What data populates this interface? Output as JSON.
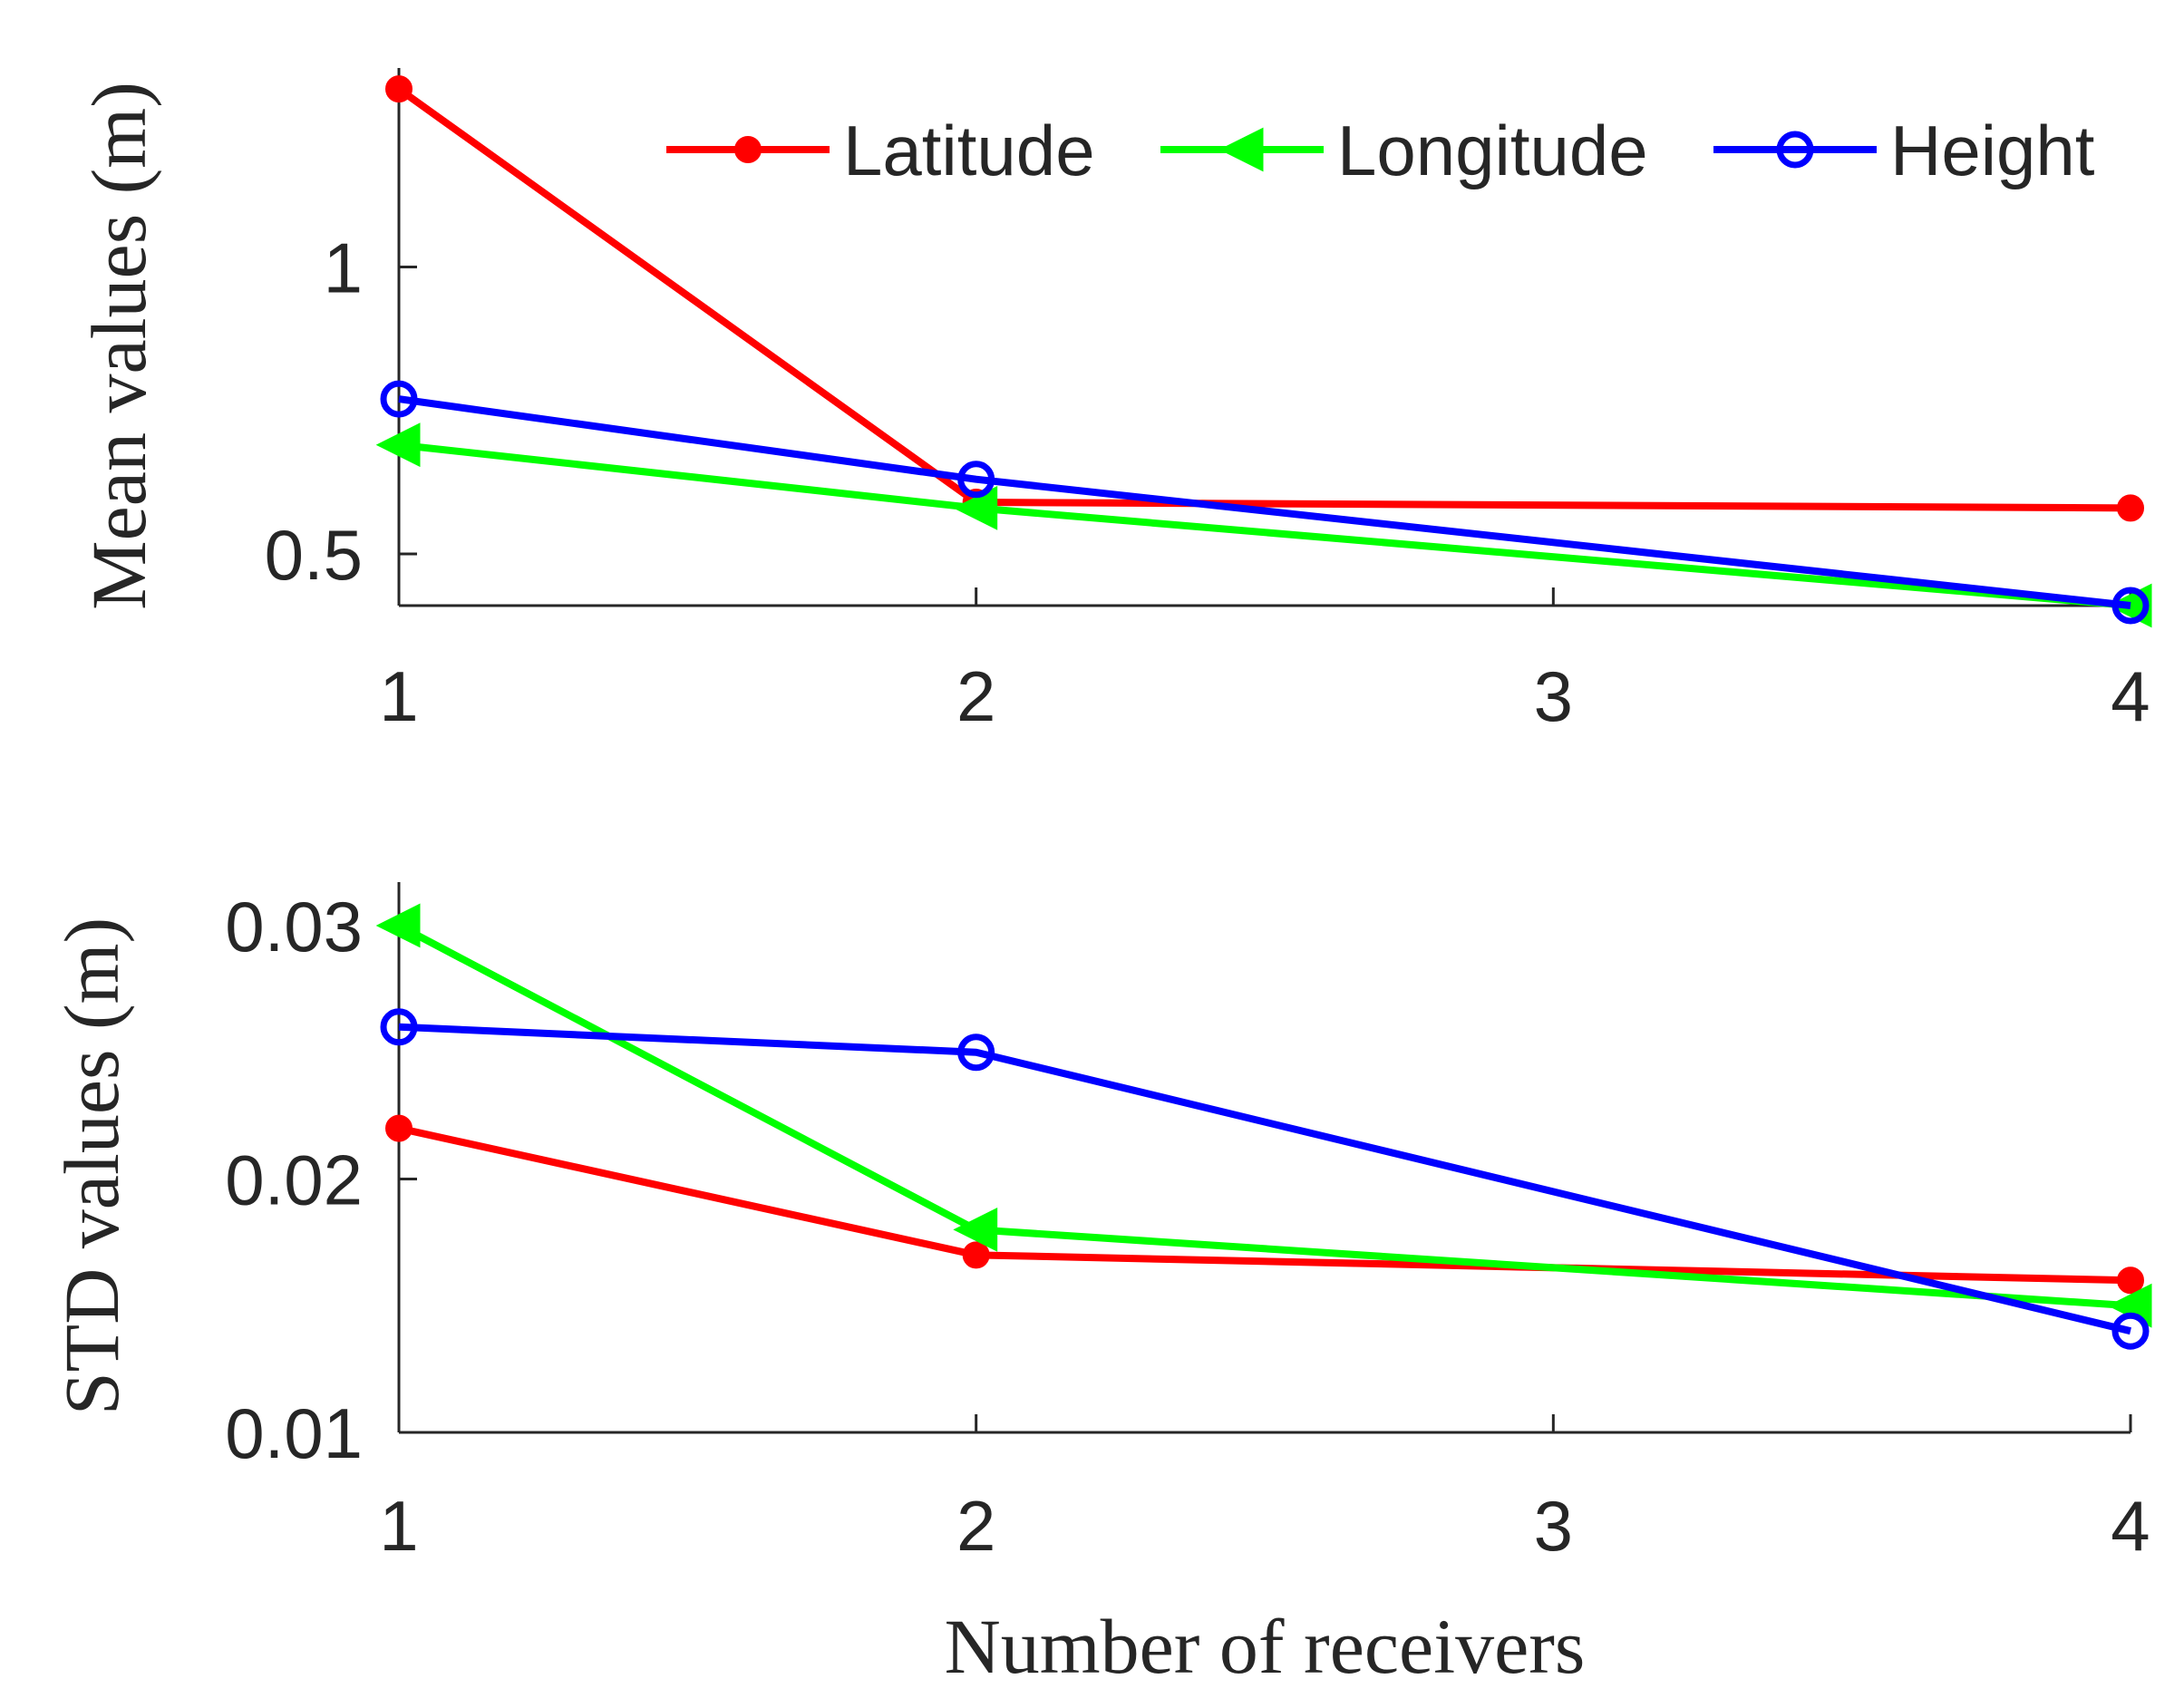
{
  "chart_data": [
    {
      "type": "line",
      "ylabel": "Mean values (m)",
      "xlabel": "",
      "x": [
        1,
        2,
        3,
        4
      ],
      "x_ticks": [
        "1",
        "2",
        "3",
        "4"
      ],
      "xlim": [
        1,
        4
      ],
      "y_ticks": [
        "0.5",
        "1"
      ],
      "y_tick_values": [
        0.5,
        1
      ],
      "ylim": [
        0.41,
        1.315
      ],
      "grid": false,
      "legend": "top-right",
      "series": [
        {
          "name": "Latitude",
          "x": [
            1,
            2,
            4
          ],
          "values": [
            1.31,
            0.59,
            0.58
          ],
          "color": "#ff0000",
          "marker": "dot"
        },
        {
          "name": "Longitude",
          "x": [
            1,
            2,
            4
          ],
          "values": [
            0.69,
            0.58,
            0.41
          ],
          "color": "#00ff00",
          "marker": "triangle-left"
        },
        {
          "name": "Height",
          "x": [
            1,
            2,
            4
          ],
          "values": [
            0.77,
            0.63,
            0.41
          ],
          "color": "#0000ff",
          "marker": "circle"
        }
      ]
    },
    {
      "type": "line",
      "ylabel": "STD values (m)",
      "xlabel": "Number of receivers",
      "x": [
        1,
        2,
        3,
        4
      ],
      "x_ticks": [
        "1",
        "2",
        "3",
        "4"
      ],
      "xlim": [
        1,
        4
      ],
      "y_ticks": [
        "0.01",
        "0.02",
        "0.03"
      ],
      "y_tick_values": [
        0.01,
        0.02,
        0.03
      ],
      "ylim": [
        0.01,
        0.031
      ],
      "grid": false,
      "series": [
        {
          "name": "Latitude",
          "x": [
            1,
            2,
            4
          ],
          "values": [
            0.022,
            0.017,
            0.016
          ],
          "color": "#ff0000",
          "marker": "dot"
        },
        {
          "name": "Longitude",
          "x": [
            1,
            2,
            4
          ],
          "values": [
            0.03,
            0.018,
            0.015
          ],
          "color": "#00ff00",
          "marker": "triangle-left"
        },
        {
          "name": "Height",
          "x": [
            1,
            2,
            4
          ],
          "values": [
            0.026,
            0.025,
            0.014
          ],
          "color": "#0000ff",
          "marker": "circle"
        }
      ]
    }
  ]
}
